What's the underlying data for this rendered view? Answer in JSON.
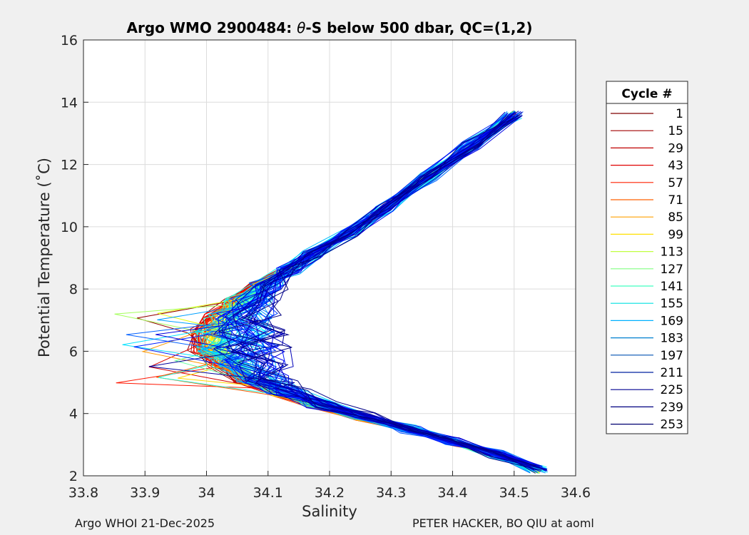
{
  "chart_data": {
    "type": "line",
    "title": "Argo WMO 2900484: θ-S below 500 dbar,  QC=(1,2)",
    "title_prefix": "Argo WMO 2900484: ",
    "title_theta": "θ",
    "title_suffix": "-S below 500 dbar,  QC=(1,2)",
    "xlabel": "Salinity",
    "ylabel": "Potential Temperature (˚C)",
    "xlim": [
      33.8,
      34.6
    ],
    "ylim": [
      2,
      16
    ],
    "xticks": [
      33.8,
      33.9,
      34,
      34.1,
      34.2,
      34.3,
      34.4,
      34.5,
      34.6
    ],
    "xtick_labels": [
      "33.8",
      "33.9",
      "34",
      "34.1",
      "34.2",
      "34.3",
      "34.4",
      "34.5",
      "34.6"
    ],
    "yticks": [
      2,
      4,
      6,
      8,
      10,
      12,
      14,
      16
    ],
    "ytick_labels": [
      "2",
      "4",
      "6",
      "8",
      "10",
      "12",
      "14",
      "16"
    ],
    "grid": true,
    "legend_position": "right-outside",
    "legend_title": "Cycle #",
    "legend_entries": [
      "1",
      "15",
      "29",
      "43",
      "57",
      "71",
      "85",
      "99",
      "113",
      "127",
      "141",
      "155",
      "169",
      "183",
      "197",
      "211",
      "225",
      "239",
      "253"
    ],
    "legend_colors": [
      "#7f0000",
      "#a00000",
      "#c00000",
      "#e00000",
      "#ff2000",
      "#ff6000",
      "#ffa000",
      "#ffe000",
      "#c0ff40",
      "#80ff80",
      "#40ffc0",
      "#00e0e0",
      "#00b0ff",
      "#0080d0",
      "#0050b0",
      "#0020a0",
      "#000090",
      "#000080",
      "#000070"
    ],
    "cycle_range": [
      1,
      253
    ],
    "colormap": "jet",
    "representative_profile": {
      "salinity": [
        34.54,
        34.47,
        34.4,
        34.33,
        34.25,
        34.18,
        34.12,
        34.08,
        34.05,
        34.03,
        34.03,
        34.04,
        34.06,
        34.09,
        34.13,
        34.17,
        34.23,
        34.29,
        34.36,
        34.43,
        34.5
      ],
      "theta": [
        2.2,
        2.7,
        3.1,
        3.5,
        3.9,
        4.3,
        4.7,
        5.1,
        5.6,
        6.1,
        6.6,
        7.1,
        7.6,
        8.1,
        8.6,
        9.1,
        9.8,
        10.6,
        11.6,
        12.6,
        13.6
      ]
    }
  },
  "footer": {
    "left": "Argo WHOI 21-Dec-2025",
    "right": "PETER HACKER, BO QIU at aoml"
  }
}
